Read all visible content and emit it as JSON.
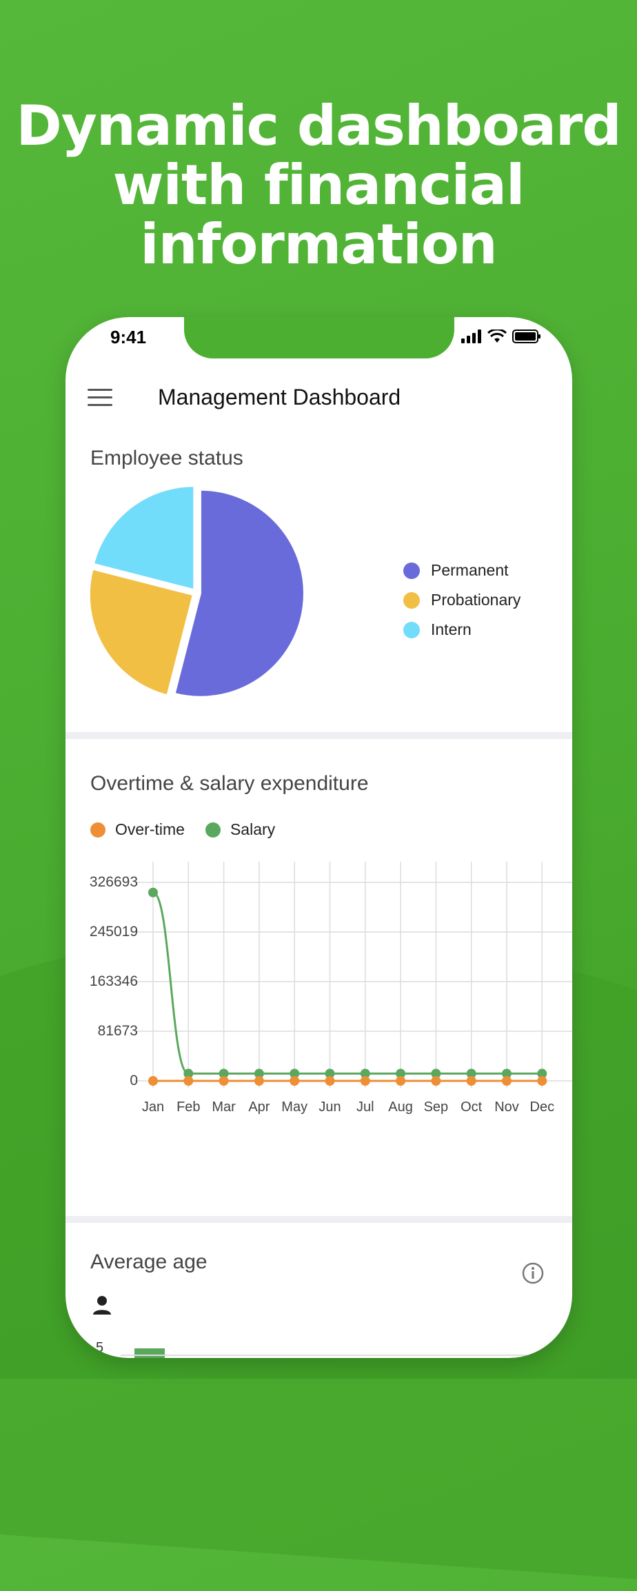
{
  "headline": [
    "Dynamic dashboard",
    "with financial",
    "information"
  ],
  "status_bar": {
    "time": "9:41"
  },
  "appbar": {
    "title": "Management Dashboard"
  },
  "employee_status": {
    "title": "Employee status",
    "legend": [
      {
        "label": "Permanent",
        "color": "#6a6bdb"
      },
      {
        "label": "Probationary",
        "color": "#f2bf45"
      },
      {
        "label": "Intern",
        "color": "#72dcfb"
      }
    ]
  },
  "overtime": {
    "title": "Overtime & salary expenditure",
    "legend": [
      {
        "label": "Over-time",
        "color": "#ee8e35"
      },
      {
        "label": "Salary",
        "color": "#5aa85e"
      }
    ]
  },
  "average_age": {
    "title": "Average age",
    "first_tick": "5"
  },
  "icons": [
    "menu-icon",
    "signal-icon",
    "wifi-icon",
    "battery-icon",
    "info-icon",
    "person-icon"
  ],
  "chart_data": [
    {
      "type": "pie",
      "title": "Employee status",
      "categories": [
        "Permanent",
        "Probationary",
        "Intern"
      ],
      "values": [
        54,
        25,
        21
      ],
      "colors": [
        "#6a6bdb",
        "#f2bf45",
        "#72dcfb"
      ]
    },
    {
      "type": "line",
      "title": "Overtime & salary expenditure",
      "categories": [
        "Jan",
        "Feb",
        "Mar",
        "Apr",
        "May",
        "Jun",
        "Jul",
        "Aug",
        "Sep",
        "Oct",
        "Nov",
        "Dec"
      ],
      "y_ticks": [
        "326693",
        "245019",
        "163346",
        "81673",
        "0"
      ],
      "ylim": [
        0,
        326693
      ],
      "grid": true,
      "legend": "top-left",
      "series": [
        {
          "name": "Over-time",
          "color": "#ee8e35",
          "values": [
            0,
            0,
            0,
            0,
            0,
            0,
            0,
            0,
            0,
            0,
            0,
            0
          ]
        },
        {
          "name": "Salary",
          "color": "#5aa85e",
          "values": [
            310000,
            12000,
            12000,
            12000,
            12000,
            12000,
            12000,
            12000,
            12000,
            12000,
            12000,
            12000
          ]
        }
      ]
    }
  ]
}
